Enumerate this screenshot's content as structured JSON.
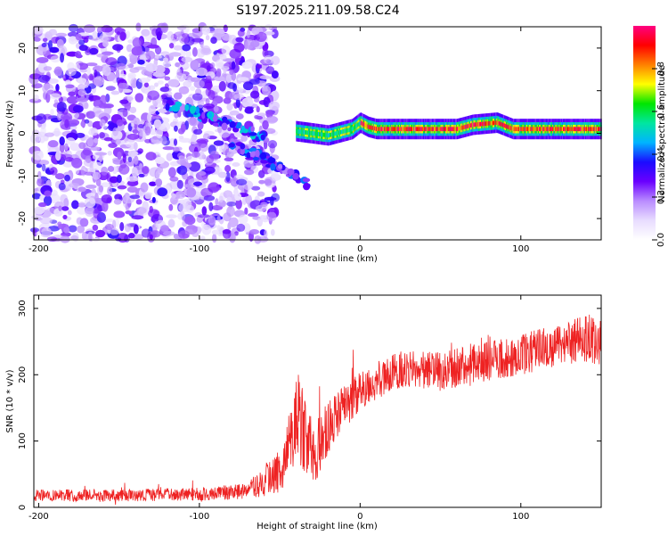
{
  "figure": {
    "title": "S197.2025.211.09.58.C24"
  },
  "chart_data": [
    {
      "type": "heatmap",
      "xlabel": "Height of straight line (km)",
      "ylabel": "Frequency (Hz)",
      "xlim": [
        -203,
        150
      ],
      "ylim": [
        -25,
        25
      ],
      "xticks": [
        -200,
        -100,
        0,
        100
      ],
      "yticks": [
        -20,
        -10,
        0,
        10,
        20
      ],
      "colorbar": {
        "label": "Normalized spectral amplitude",
        "range": [
          0,
          1
        ],
        "ticks": [
          "0.0",
          "0.2",
          "0.4",
          "0.6",
          "0.8"
        ],
        "tick_values": [
          0.0,
          0.2,
          0.4,
          0.6,
          0.8
        ],
        "colors": [
          "#ffffff",
          "#e8dcff",
          "#b98cff",
          "#6a00ff",
          "#1b0cff",
          "#00b4ff",
          "#00e6a0",
          "#00e600",
          "#ffff00",
          "#ff8000",
          "#ff0000",
          "#ff0080"
        ]
      },
      "features": {
        "noise_region": {
          "x": [
            -203,
            -52
          ],
          "freq": [
            -25,
            25
          ],
          "amplitude": 0.15
        },
        "chirp_upper": {
          "x": [
            -120,
            -60
          ],
          "freq": [
            7,
            -1
          ],
          "amplitude": 0.35
        },
        "chirp_lower": {
          "x": [
            -80,
            -32
          ],
          "freq": [
            -2,
            -12
          ],
          "amplitude": 0.3
        },
        "tone": [
          {
            "x": -40,
            "freq": 0.5
          },
          {
            "x": -20,
            "freq": -0.5
          },
          {
            "x": -5,
            "freq": 1
          },
          {
            "x": 0,
            "freq": 2.5
          },
          {
            "x": 5,
            "freq": 1.5
          },
          {
            "x": 10,
            "freq": 1
          },
          {
            "x": 40,
            "freq": 1
          },
          {
            "x": 60,
            "freq": 1
          },
          {
            "x": 70,
            "freq": 2
          },
          {
            "x": 85,
            "freq": 2.5
          },
          {
            "x": 95,
            "freq": 1
          },
          {
            "x": 150,
            "freq": 1
          }
        ],
        "tone_amplitude": 0.9
      }
    },
    {
      "type": "line",
      "xlabel": "Height of straight line (km)",
      "ylabel": "SNR (10 * v/v)",
      "xlim": [
        -203,
        150
      ],
      "ylim": [
        0,
        320
      ],
      "xticks": [
        -200,
        -100,
        0,
        100
      ],
      "yticks": [
        0,
        100,
        200,
        300
      ],
      "color": "#ee2222",
      "envelope": {
        "x": [
          -203,
          -150,
          -100,
          -70,
          -50,
          -42,
          -38,
          -33,
          -28,
          -20,
          -10,
          0,
          20,
          30,
          50,
          70,
          100,
          130,
          150
        ],
        "mean": [
          18,
          18,
          20,
          25,
          55,
          110,
          140,
          100,
          80,
          120,
          150,
          175,
          205,
          210,
          205,
          215,
          230,
          250,
          255
        ],
        "noise": [
          9,
          9,
          10,
          12,
          35,
          50,
          75,
          55,
          45,
          40,
          35,
          30,
          28,
          28,
          30,
          30,
          30,
          35,
          40
        ]
      }
    }
  ]
}
